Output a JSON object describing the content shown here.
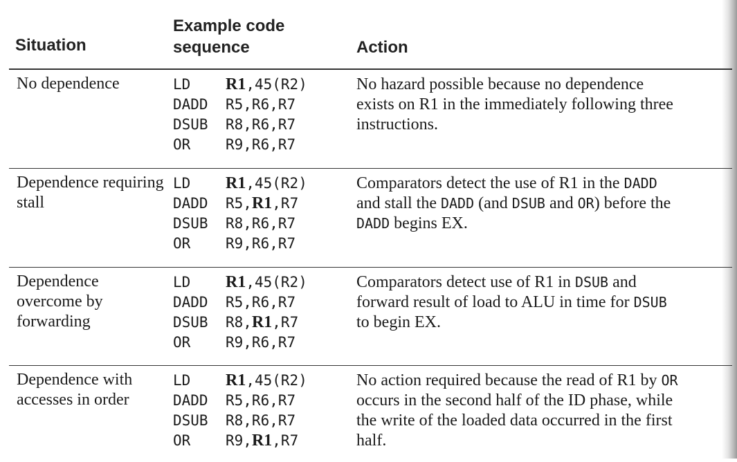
{
  "header": {
    "situation": "Situation",
    "code": "Example code sequence",
    "action": "Action"
  },
  "rows": [
    {
      "situation": "No dependence",
      "code": [
        {
          "op": "LD",
          "parts": [
            {
              "t": "R1",
              "b": true
            },
            {
              "t": ",45(R2)",
              "b": false
            }
          ]
        },
        {
          "op": "DADD",
          "parts": [
            {
              "t": "R5,R6,R7",
              "b": false
            }
          ]
        },
        {
          "op": "DSUB",
          "parts": [
            {
              "t": "R8,R6,R7",
              "b": false
            }
          ]
        },
        {
          "op": "OR",
          "parts": [
            {
              "t": "R9,R6,R7",
              "b": false
            }
          ]
        }
      ],
      "action": [
        [
          {
            "t": "No hazard possible because no dependence",
            "m": false
          }
        ],
        [
          {
            "t": "exists on R1 in the immediately following three",
            "m": false
          }
        ],
        [
          {
            "t": "instructions.",
            "m": false
          }
        ]
      ]
    },
    {
      "situation": "Dependence requiring stall",
      "code": [
        {
          "op": "LD",
          "parts": [
            {
              "t": "R1",
              "b": true
            },
            {
              "t": ",45(R2)",
              "b": false
            }
          ]
        },
        {
          "op": "DADD",
          "parts": [
            {
              "t": "R5,",
              "b": false
            },
            {
              "t": "R1",
              "b": true
            },
            {
              "t": ",R7",
              "b": false
            }
          ]
        },
        {
          "op": "DSUB",
          "parts": [
            {
              "t": "R8,R6,R7",
              "b": false
            }
          ]
        },
        {
          "op": "OR",
          "parts": [
            {
              "t": "R9,R6,R7",
              "b": false
            }
          ]
        }
      ],
      "action": [
        [
          {
            "t": "Comparators detect the use of R1 in the ",
            "m": false
          },
          {
            "t": "DADD",
            "m": true
          }
        ],
        [
          {
            "t": "and stall the ",
            "m": false
          },
          {
            "t": "DADD",
            "m": true
          },
          {
            "t": " (and ",
            "m": false
          },
          {
            "t": "DSUB",
            "m": true
          },
          {
            "t": " and ",
            "m": false
          },
          {
            "t": "OR",
            "m": true
          },
          {
            "t": ") before the",
            "m": false
          }
        ],
        [
          {
            "t": "DADD",
            "m": true
          },
          {
            "t": " begins EX.",
            "m": false
          }
        ]
      ]
    },
    {
      "situation": "Dependence overcome by forwarding",
      "code": [
        {
          "op": "LD",
          "parts": [
            {
              "t": "R1",
              "b": true
            },
            {
              "t": ",45(R2)",
              "b": false
            }
          ]
        },
        {
          "op": "DADD",
          "parts": [
            {
              "t": "R5,R6,R7",
              "b": false
            }
          ]
        },
        {
          "op": "DSUB",
          "parts": [
            {
              "t": "R8,",
              "b": false
            },
            {
              "t": "R1",
              "b": true
            },
            {
              "t": ",R7",
              "b": false
            }
          ]
        },
        {
          "op": "OR",
          "parts": [
            {
              "t": "R9,R6,R7",
              "b": false
            }
          ]
        }
      ],
      "action": [
        [
          {
            "t": "Comparators detect use of R1 in ",
            "m": false
          },
          {
            "t": "DSUB",
            "m": true
          },
          {
            "t": " and",
            "m": false
          }
        ],
        [
          {
            "t": "forward result of load to ALU in time for ",
            "m": false
          },
          {
            "t": "DSUB",
            "m": true
          }
        ],
        [
          {
            "t": "to begin EX.",
            "m": false
          }
        ]
      ]
    },
    {
      "situation": "Dependence with accesses in order",
      "code": [
        {
          "op": "LD",
          "parts": [
            {
              "t": "R1",
              "b": true
            },
            {
              "t": ",45(R2)",
              "b": false
            }
          ]
        },
        {
          "op": "DADD",
          "parts": [
            {
              "t": "R5,R6,R7",
              "b": false
            }
          ]
        },
        {
          "op": "DSUB",
          "parts": [
            {
              "t": "R8,R6,R7",
              "b": false
            }
          ]
        },
        {
          "op": "OR",
          "parts": [
            {
              "t": "R9,",
              "b": false
            },
            {
              "t": "R1",
              "b": true
            },
            {
              "t": ",R7",
              "b": false
            }
          ]
        }
      ],
      "action": [
        [
          {
            "t": "No action required because the read of R1 by ",
            "m": false
          },
          {
            "t": "OR",
            "m": true
          }
        ],
        [
          {
            "t": "occurs in the second half of the ID phase, while",
            "m": false
          }
        ],
        [
          {
            "t": "the write of the loaded data occurred in the first",
            "m": false
          }
        ],
        [
          {
            "t": "half.",
            "m": false
          }
        ]
      ]
    }
  ]
}
